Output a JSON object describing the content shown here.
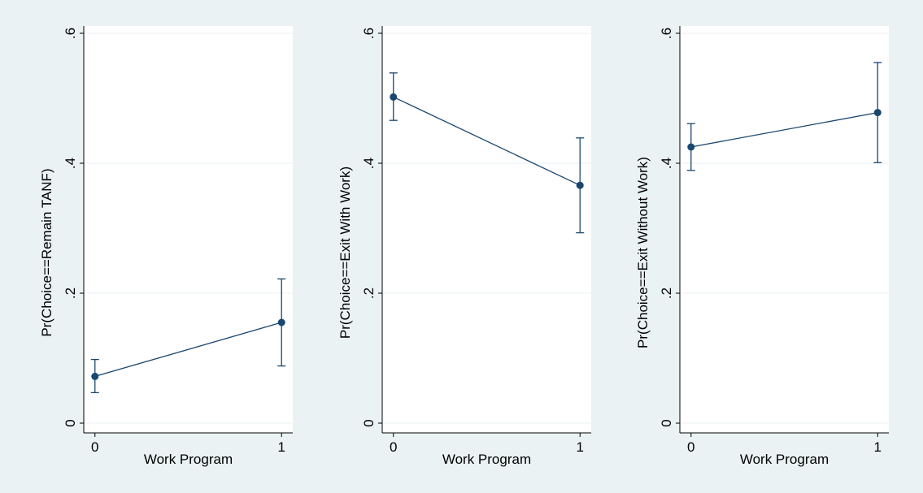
{
  "colors": {
    "background": "#eaf2f3",
    "plot_background": "#ffffff",
    "gridline": "#eaf2f3",
    "series": "#1a476f",
    "axis": "#000000"
  },
  "chart_data": [
    {
      "type": "line",
      "title": "",
      "xlabel": "Work Program",
      "ylabel": "Pr(Choice==Remain TANF)",
      "x": [
        0,
        1
      ],
      "x_ticks": [
        "0",
        "1"
      ],
      "y_ticks": [
        0,
        0.2,
        0.4,
        0.6
      ],
      "y_tick_labels": [
        "0",
        ".2",
        ".4",
        ".6"
      ],
      "xlim": [
        -0.06,
        1.06
      ],
      "ylim": [
        0,
        0.6
      ],
      "grid": true,
      "series": [
        {
          "values": [
            0.072,
            0.155
          ],
          "ci_low": [
            0.047,
            0.088
          ],
          "ci_high": [
            0.098,
            0.222
          ]
        }
      ]
    },
    {
      "type": "line",
      "title": "",
      "xlabel": "Work Program",
      "ylabel": "Pr(Choice==Exit With Work)",
      "x": [
        0,
        1
      ],
      "x_ticks": [
        "0",
        "1"
      ],
      "y_ticks": [
        0,
        0.2,
        0.4,
        0.6
      ],
      "y_tick_labels": [
        "0",
        ".2",
        ".4",
        ".6"
      ],
      "xlim": [
        -0.06,
        1.06
      ],
      "ylim": [
        0,
        0.6
      ],
      "grid": true,
      "series": [
        {
          "values": [
            0.502,
            0.366
          ],
          "ci_low": [
            0.466,
            0.293
          ],
          "ci_high": [
            0.539,
            0.439
          ]
        }
      ]
    },
    {
      "type": "line",
      "title": "",
      "xlabel": "Work Program",
      "ylabel": "Pr(Choice==Exit Without Work)",
      "x": [
        0,
        1
      ],
      "x_ticks": [
        "0",
        "1"
      ],
      "y_ticks": [
        0,
        0.2,
        0.4,
        0.6
      ],
      "y_tick_labels": [
        "0",
        ".2",
        ".4",
        ".6"
      ],
      "xlim": [
        -0.06,
        1.06
      ],
      "ylim": [
        0,
        0.6
      ],
      "grid": true,
      "series": [
        {
          "values": [
            0.425,
            0.478
          ],
          "ci_low": [
            0.389,
            0.401
          ],
          "ci_high": [
            0.461,
            0.555
          ]
        }
      ]
    }
  ]
}
